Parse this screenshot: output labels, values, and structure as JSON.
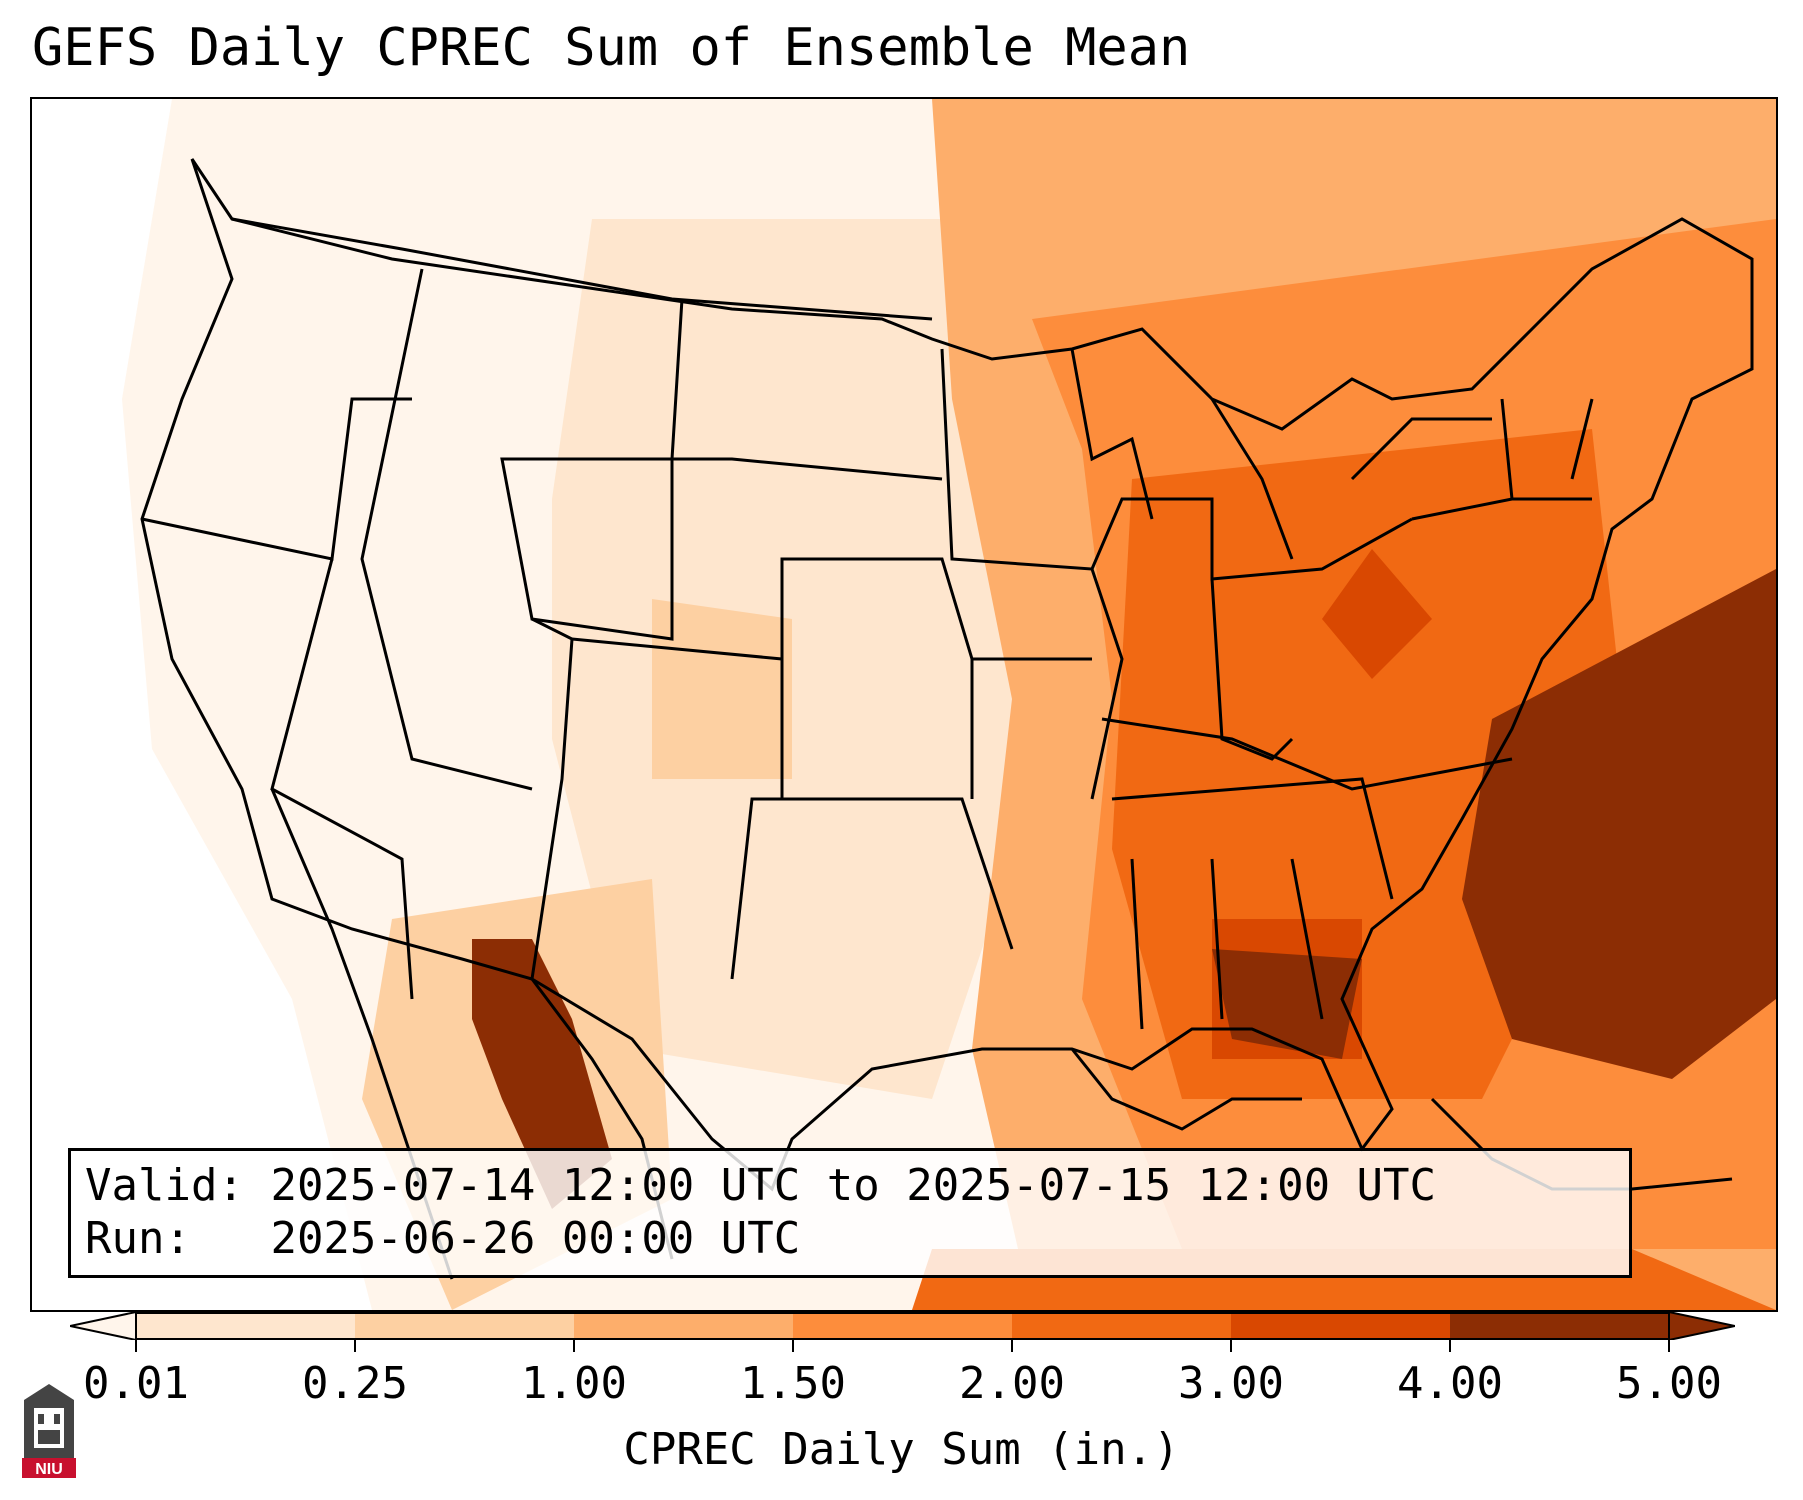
{
  "title": "GEFS Daily CPREC Sum of Ensemble Mean",
  "info": {
    "valid_label": "Valid:",
    "valid_value": "2025-07-14 12:00 UTC to 2025-07-15 12:00 UTC",
    "run_label": "Run:",
    "run_value": "2025-06-26 00:00 UTC"
  },
  "colorbar": {
    "label": "CPREC Daily Sum (in.)",
    "ticks": [
      "0.01",
      "0.25",
      "1.00",
      "1.50",
      "2.00",
      "3.00",
      "4.00",
      "5.00"
    ],
    "colors": [
      "#fff5eb",
      "#fee6ce",
      "#fdd0a2",
      "#fdae6b",
      "#fd8d3c",
      "#f16913",
      "#d94801",
      "#8c2d04"
    ],
    "extend": "both"
  },
  "map": {
    "region": "Contiguous United States",
    "background_color": "#fff5eb",
    "border_color": "#000000"
  },
  "logo": {
    "text": "NIU",
    "color": "#c8102e"
  }
}
